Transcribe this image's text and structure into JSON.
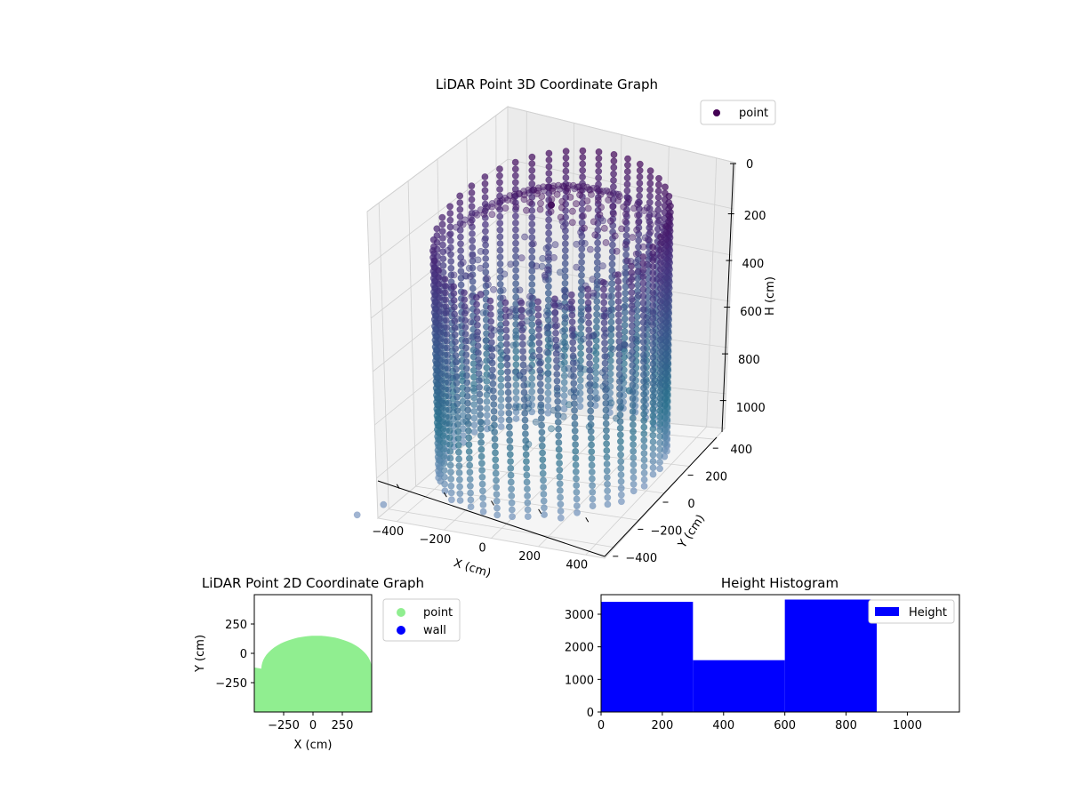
{
  "chart_data": [
    {
      "type": "scatter",
      "projection": "3d",
      "title": "LiDAR Point 3D Coordinate Graph",
      "xlabel": "X (cm)",
      "ylabel": "Y (cm)",
      "zlabel": "H (cm)",
      "xticks": [
        "−400",
        "−200",
        "0",
        "200",
        "400"
      ],
      "yticks": [
        "−400",
        "−200",
        "0",
        "200",
        "400"
      ],
      "zticks": [
        "0",
        "200",
        "400",
        "600",
        "800",
        "1000"
      ],
      "xlim": [
        -480,
        480
      ],
      "ylim": [
        -480,
        480
      ],
      "zlim": [
        0,
        1150
      ],
      "z_inverted": true,
      "grid": true,
      "legend": {
        "placement": "top-right",
        "entries": [
          {
            "label": "point",
            "color": "#440154"
          }
        ]
      },
      "series": [
        {
          "name": "point",
          "shape": "dome-capped cylinder of points",
          "radius_cm": 430,
          "height_range_cm": [
            0,
            1100
          ],
          "colormap": [
            "#440154",
            "#472f7d",
            "#39568c",
            "#2c728e",
            "#8da0cb"
          ]
        }
      ],
      "outliers": [
        {
          "x": -460,
          "y": -470,
          "h": 1100
        },
        {
          "x": -520,
          "y": -560,
          "h": 1110
        }
      ]
    },
    {
      "type": "scatter",
      "title": "LiDAR Point 2D Coordinate Graph",
      "xlabel": "X (cm)",
      "ylabel": "Y (cm)",
      "xticks": [
        "−250",
        "0",
        "250"
      ],
      "yticks": [
        "−250",
        "0",
        "250"
      ],
      "xlim": [
        -500,
        500
      ],
      "ylim": [
        -500,
        500
      ],
      "legend": {
        "placement": "outside-right",
        "entries": [
          {
            "label": "point",
            "color": "#90ee90"
          },
          {
            "label": "wall",
            "color": "#0000ff"
          }
        ]
      },
      "series": [
        {
          "name": "point",
          "color": "#90ee90",
          "region": "dense half-disc from y=-500 to y=150"
        }
      ]
    },
    {
      "type": "bar",
      "title": "Height Histogram",
      "xticks": [
        "0",
        "200",
        "400",
        "600",
        "800",
        "1000"
      ],
      "yticks": [
        "0",
        "1000",
        "2000",
        "3000"
      ],
      "xlim": [
        0,
        1170
      ],
      "ylim": [
        0,
        3600
      ],
      "legend": {
        "placement": "top-right",
        "entries": [
          {
            "label": "Height",
            "color": "#0000ff"
          }
        ]
      },
      "bins": [
        {
          "start": 0,
          "end": 300,
          "count": 3380
        },
        {
          "start": 300,
          "end": 600,
          "count": 1590
        },
        {
          "start": 600,
          "end": 900,
          "count": 3450
        }
      ],
      "color": "#0000ff"
    }
  ]
}
